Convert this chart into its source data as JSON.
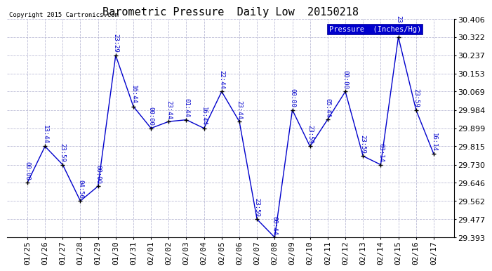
{
  "title": "Barometric Pressure  Daily Low  20150218",
  "copyright": "Copyright 2015 Cartronics.com",
  "legend_label": "Pressure  (Inches/Hg)",
  "background_color": "#ffffff",
  "plot_bg_color": "#ffffff",
  "grid_color": "#aaaacc",
  "line_color": "#0000cc",
  "marker_color": "#000000",
  "dates": [
    "01/25",
    "01/26",
    "01/27",
    "01/28",
    "01/29",
    "01/30",
    "01/31",
    "02/01",
    "02/02",
    "02/03",
    "02/04",
    "02/05",
    "02/06",
    "02/07",
    "02/08",
    "02/09",
    "02/10",
    "02/11",
    "02/12",
    "02/13",
    "02/14",
    "02/15",
    "02/16",
    "02/17"
  ],
  "values": [
    29.646,
    29.815,
    29.73,
    29.562,
    29.63,
    30.237,
    30.0,
    29.899,
    29.93,
    29.938,
    29.899,
    30.069,
    29.93,
    29.477,
    29.393,
    29.984,
    29.815,
    29.94,
    30.069,
    29.77,
    29.73,
    30.322,
    29.984,
    29.78
  ],
  "annotations": [
    "00:00",
    "13:44",
    "23:59",
    "04:56",
    "00:00",
    "23:29",
    "16:44",
    "00:00",
    "23:44",
    "01:44",
    "16:44",
    "22:44",
    "23:44",
    "23:59",
    "00:44",
    "00:00",
    "23:59",
    "05:44",
    "00:00",
    "23:59",
    "03:14",
    "23:00",
    "23:59",
    "16:14"
  ],
  "ylim_min": 29.393,
  "ylim_max": 30.406,
  "yticks": [
    29.393,
    29.477,
    29.562,
    29.646,
    29.73,
    29.815,
    29.899,
    29.984,
    30.069,
    30.153,
    30.237,
    30.322,
    30.406
  ],
  "title_fontsize": 11,
  "tick_fontsize": 8,
  "legend_box_color": "#0000cc",
  "legend_text_color": "#ffffff"
}
